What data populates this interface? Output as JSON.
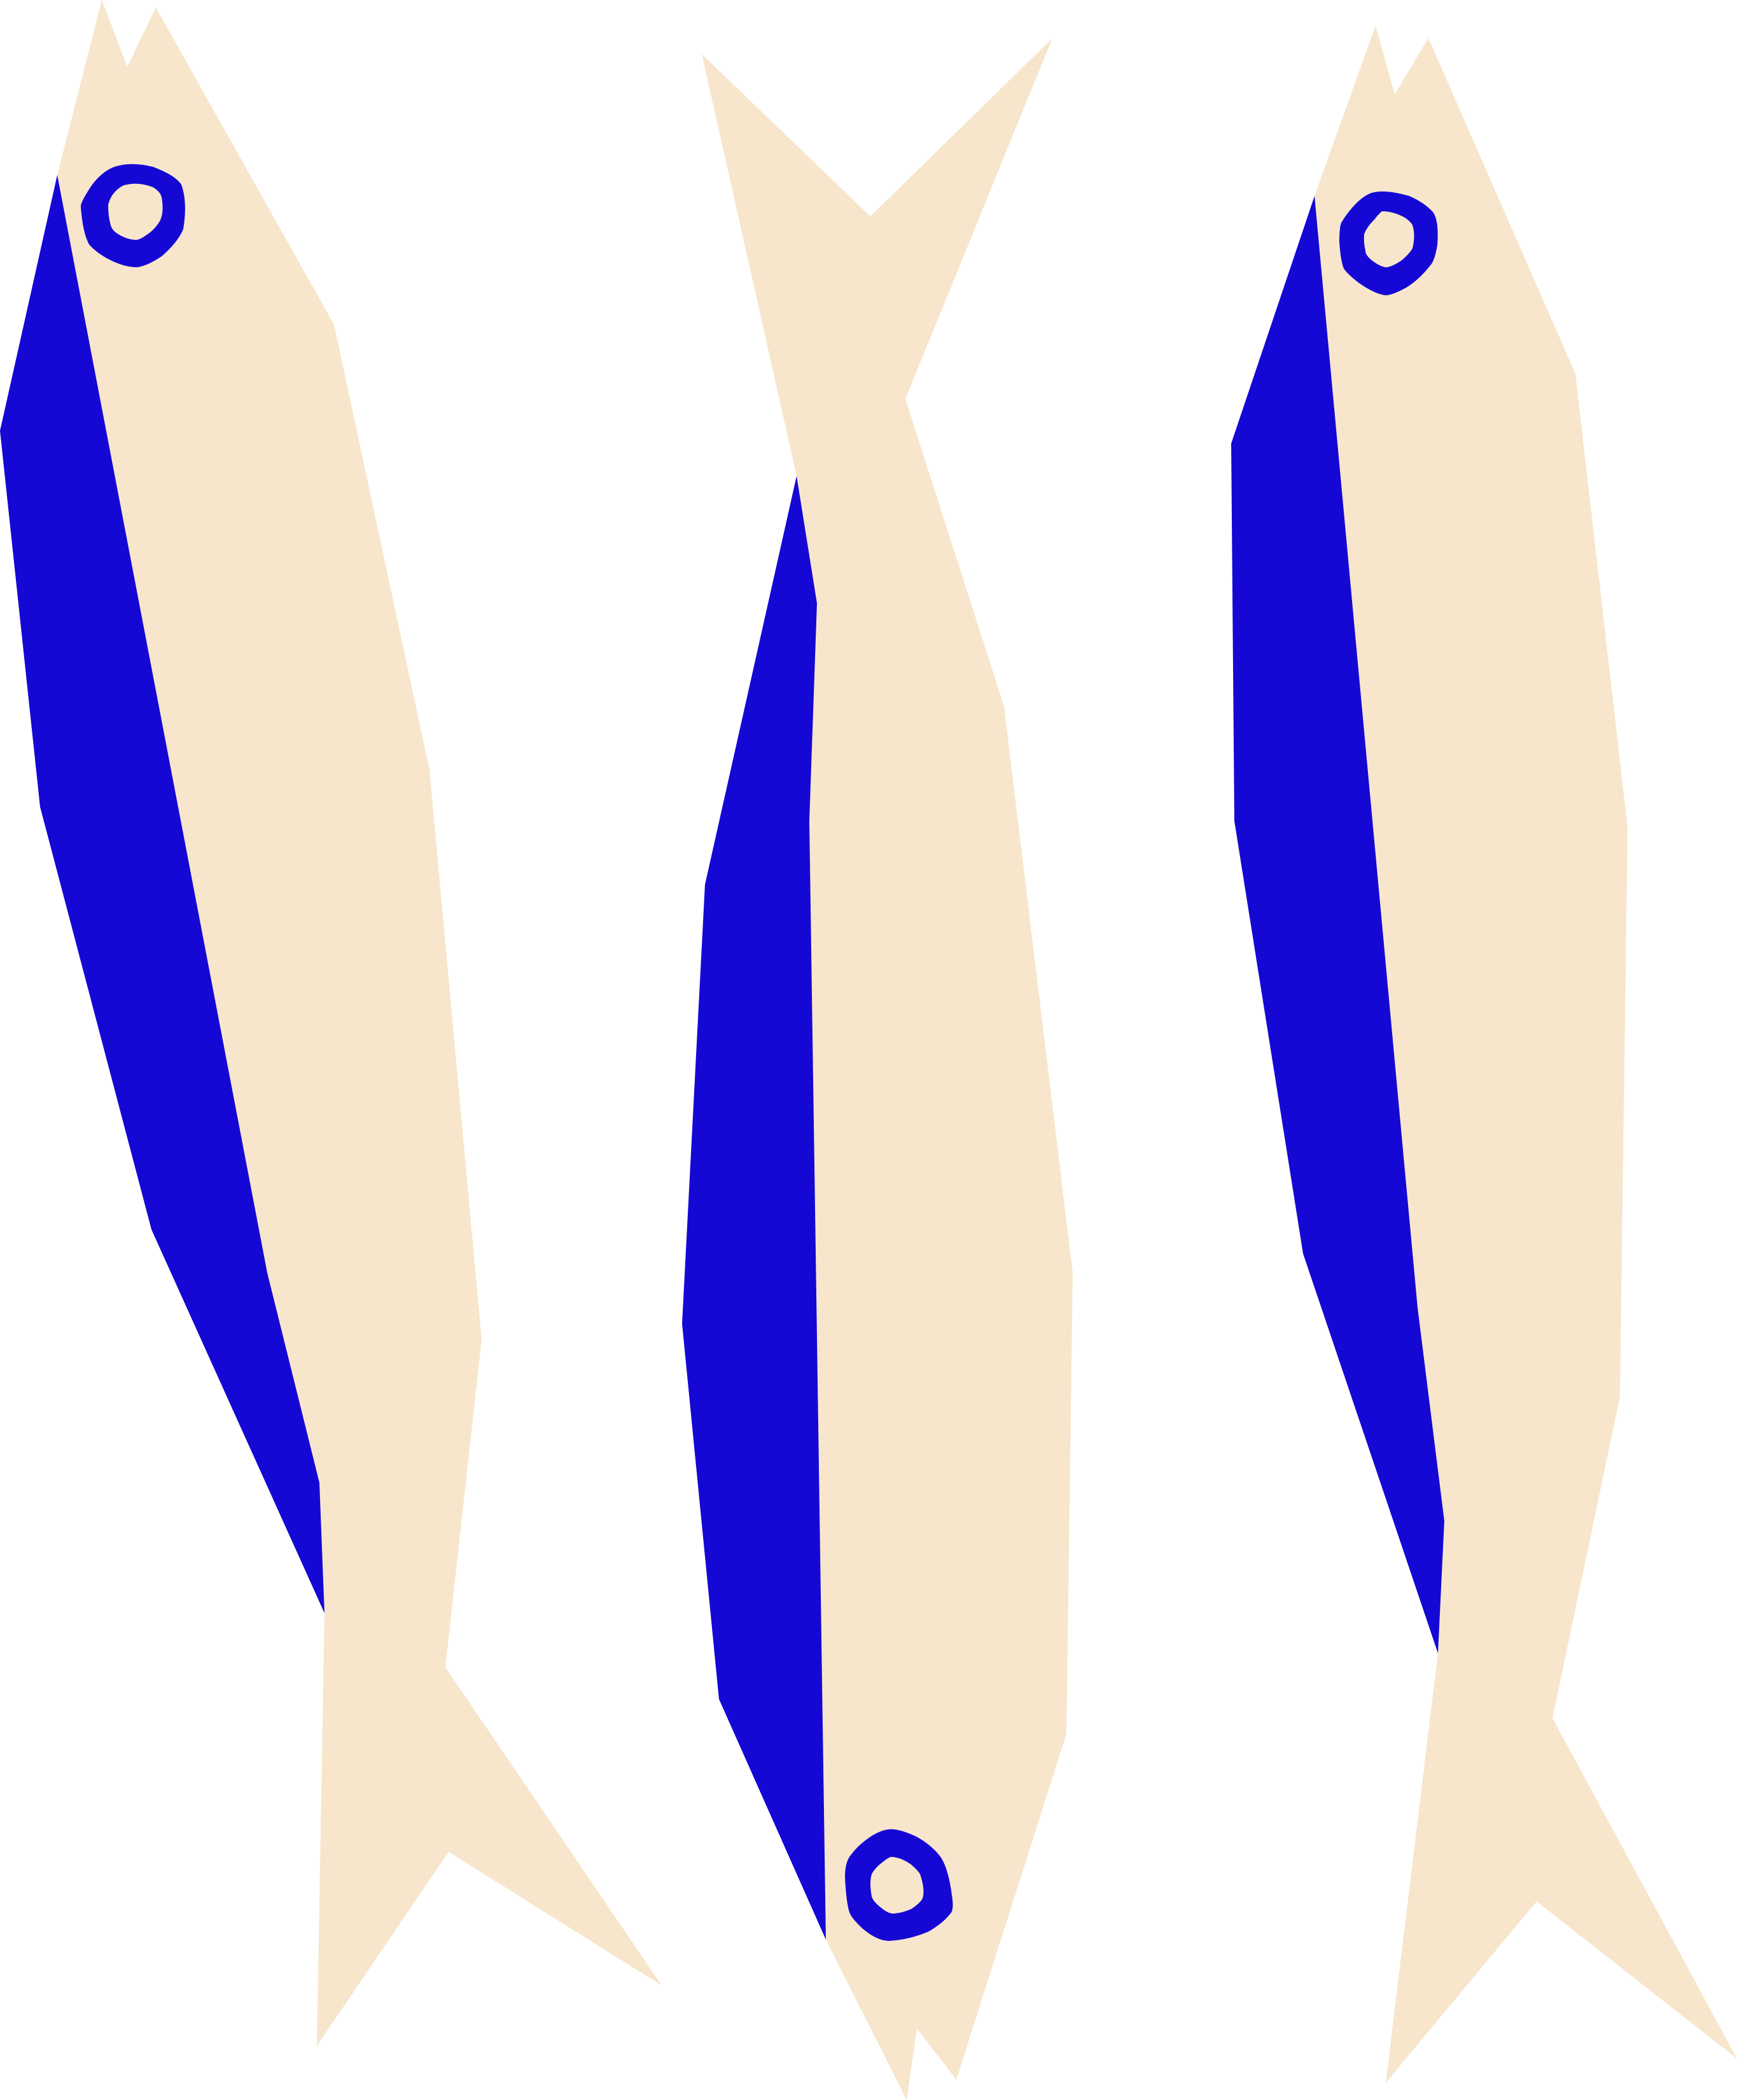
{
  "scene": {
    "subject": "three-fish",
    "fish_count": 3,
    "background_color": "#FFFFFF",
    "body_color": "#F7E6CC",
    "accent_color": "#1508D4"
  },
  "fish": [
    {
      "id": "left",
      "head": "top"
    },
    {
      "id": "middle",
      "head": "bottom"
    },
    {
      "id": "right",
      "head": "top"
    }
  ]
}
